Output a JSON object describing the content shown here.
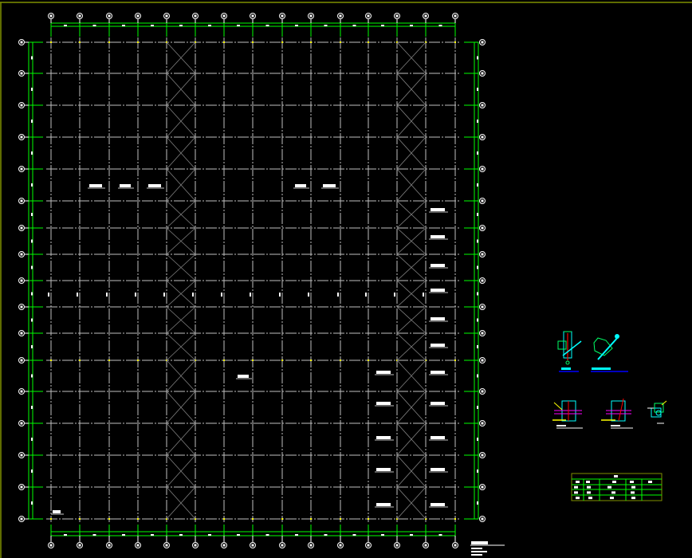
{
  "drawing": {
    "background": "#000000",
    "frame_color": "#7f8f00",
    "axis_line_color": "#c0c0c0",
    "dimension_color": "#00ff00",
    "bracing_color": "#808080",
    "column_marker_color": "#ffff00",
    "annotation_color": "#ffffff",
    "detail_colors": [
      "#00ffff",
      "#00ff66",
      "#ff0000",
      "#ffff00",
      "#0000ff",
      "#ff00ff"
    ]
  }
}
